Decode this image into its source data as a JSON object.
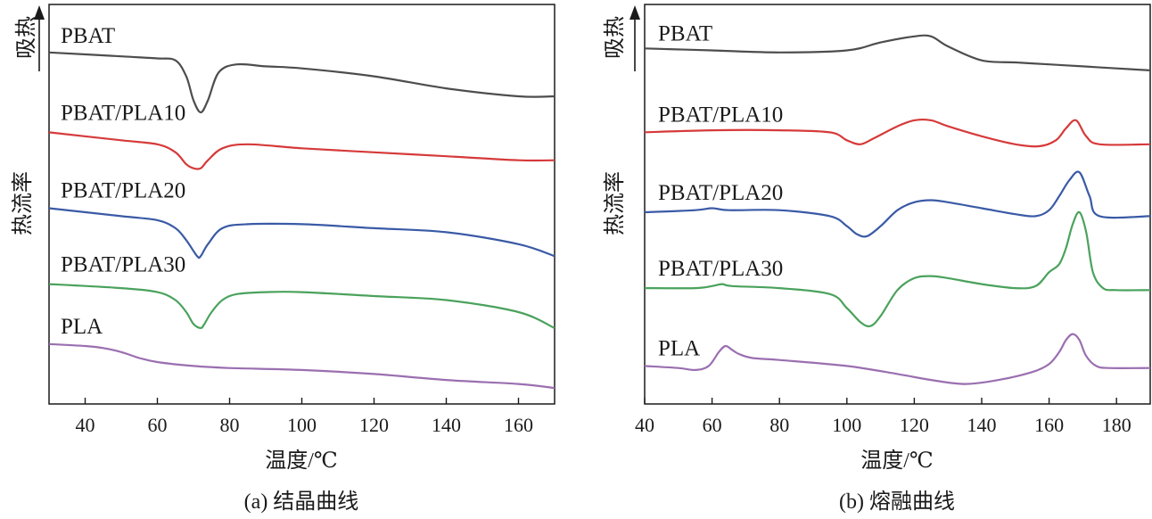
{
  "chart_data": [
    {
      "type": "line",
      "title": "(a) 结晶曲线",
      "xlabel": "温度/℃",
      "ylabel": "热流率",
      "arrow_label": "吸热",
      "xlim": [
        30,
        170
      ],
      "ylim": [
        0,
        10
      ],
      "xticks": [
        40,
        60,
        80,
        100,
        120,
        140,
        160
      ],
      "y_ticks_shown": false,
      "series": [
        {
          "name": "PBAT",
          "color": "#4d4d4d",
          "x": [
            30,
            50,
            60,
            65,
            68,
            70,
            72,
            74,
            77,
            82,
            90,
            100,
            120,
            140,
            160,
            170
          ],
          "y": [
            8.8,
            8.7,
            8.65,
            8.6,
            8.2,
            7.6,
            7.3,
            7.6,
            8.3,
            8.5,
            8.45,
            8.4,
            8.2,
            7.9,
            7.7,
            7.7
          ]
        },
        {
          "name": "PBAT/PLA10",
          "color": "#d63a3a",
          "x": [
            30,
            50,
            60,
            65,
            68,
            70,
            72,
            74,
            78,
            85,
            100,
            120,
            140,
            160,
            170
          ],
          "y": [
            6.8,
            6.6,
            6.5,
            6.3,
            6.0,
            5.9,
            5.9,
            6.1,
            6.4,
            6.5,
            6.4,
            6.3,
            6.2,
            6.1,
            6.1
          ]
        },
        {
          "name": "PBAT/PLA20",
          "color": "#3a5aa6",
          "x": [
            30,
            50,
            60,
            65,
            68,
            71,
            72,
            74,
            78,
            85,
            100,
            120,
            140,
            160,
            170
          ],
          "y": [
            4.9,
            4.7,
            4.6,
            4.4,
            4.1,
            3.7,
            3.7,
            4.0,
            4.4,
            4.5,
            4.5,
            4.4,
            4.3,
            4.0,
            3.7
          ]
        },
        {
          "name": "PBAT/PLA30",
          "color": "#4aa25c",
          "x": [
            30,
            50,
            60,
            65,
            68,
            70,
            72,
            73,
            75,
            78,
            82,
            90,
            100,
            120,
            140,
            160,
            170
          ],
          "y": [
            3.0,
            2.9,
            2.8,
            2.6,
            2.3,
            2.0,
            1.9,
            2.0,
            2.3,
            2.6,
            2.75,
            2.8,
            2.8,
            2.7,
            2.6,
            2.3,
            1.9
          ]
        },
        {
          "name": "PLA",
          "color": "#9a6fb0",
          "x": [
            30,
            40,
            45,
            50,
            55,
            60,
            70,
            80,
            100,
            120,
            140,
            160,
            170
          ],
          "y": [
            1.5,
            1.45,
            1.4,
            1.3,
            1.15,
            1.05,
            0.95,
            0.9,
            0.85,
            0.75,
            0.6,
            0.5,
            0.4
          ]
        }
      ]
    },
    {
      "type": "line",
      "title": "(b) 熔融曲线",
      "xlabel": "温度/℃",
      "ylabel": "热流率",
      "arrow_label": "吸热",
      "xlim": [
        40,
        190
      ],
      "ylim": [
        0,
        10
      ],
      "xticks": [
        40,
        60,
        80,
        100,
        120,
        140,
        160,
        180
      ],
      "y_ticks_shown": false,
      "series": [
        {
          "name": "PBAT",
          "color": "#4d4d4d",
          "x": [
            40,
            60,
            80,
            100,
            110,
            120,
            125,
            130,
            140,
            150,
            160,
            170,
            180,
            190
          ],
          "y": [
            8.9,
            8.85,
            8.8,
            8.85,
            9.05,
            9.2,
            9.2,
            8.95,
            8.6,
            8.55,
            8.5,
            8.45,
            8.4,
            8.35
          ]
        },
        {
          "name": "PBAT/PLA10",
          "color": "#d63a3a",
          "x": [
            40,
            60,
            80,
            95,
            100,
            104,
            108,
            115,
            120,
            125,
            130,
            140,
            150,
            157,
            162,
            165,
            168,
            171,
            175,
            190
          ],
          "y": [
            6.8,
            6.85,
            6.85,
            6.8,
            6.6,
            6.5,
            6.65,
            6.95,
            7.1,
            7.1,
            6.95,
            6.7,
            6.5,
            6.45,
            6.6,
            6.9,
            7.1,
            6.7,
            6.5,
            6.5
          ]
        },
        {
          "name": "PBAT/PLA20",
          "color": "#3a5aa6",
          "x": [
            40,
            55,
            60,
            65,
            80,
            95,
            100,
            103,
            106,
            110,
            115,
            120,
            125,
            130,
            140,
            150,
            156,
            160,
            163,
            166,
            169,
            172,
            175,
            190
          ],
          "y": [
            4.8,
            4.85,
            4.9,
            4.85,
            4.85,
            4.7,
            4.45,
            4.25,
            4.2,
            4.45,
            4.85,
            5.05,
            5.1,
            5.05,
            4.9,
            4.75,
            4.7,
            4.85,
            5.2,
            5.6,
            5.8,
            5.2,
            4.7,
            4.7
          ]
        },
        {
          "name": "PBAT/PLA30",
          "color": "#4aa25c",
          "x": [
            40,
            55,
            60,
            63,
            66,
            80,
            95,
            100,
            104,
            107,
            110,
            115,
            120,
            125,
            130,
            140,
            150,
            156,
            160,
            163,
            165,
            167,
            169,
            171,
            173,
            176,
            180,
            190
          ],
          "y": [
            2.9,
            2.9,
            2.95,
            3.0,
            2.95,
            2.9,
            2.75,
            2.4,
            2.05,
            1.95,
            2.2,
            2.85,
            3.15,
            3.2,
            3.15,
            3.0,
            2.9,
            2.95,
            3.3,
            3.5,
            3.9,
            4.5,
            4.8,
            4.3,
            3.3,
            2.9,
            2.85,
            2.85
          ]
        },
        {
          "name": "PLA",
          "color": "#9a6fb0",
          "x": [
            40,
            50,
            55,
            59,
            62,
            64,
            66,
            68,
            72,
            80,
            100,
            115,
            125,
            135,
            145,
            155,
            160,
            163,
            165,
            167,
            169,
            171,
            174,
            178,
            190
          ],
          "y": [
            0.95,
            0.9,
            0.85,
            0.95,
            1.3,
            1.45,
            1.35,
            1.25,
            1.15,
            1.1,
            0.95,
            0.75,
            0.6,
            0.5,
            0.6,
            0.8,
            1.0,
            1.3,
            1.6,
            1.75,
            1.6,
            1.2,
            0.95,
            0.9,
            0.9
          ]
        }
      ]
    }
  ]
}
